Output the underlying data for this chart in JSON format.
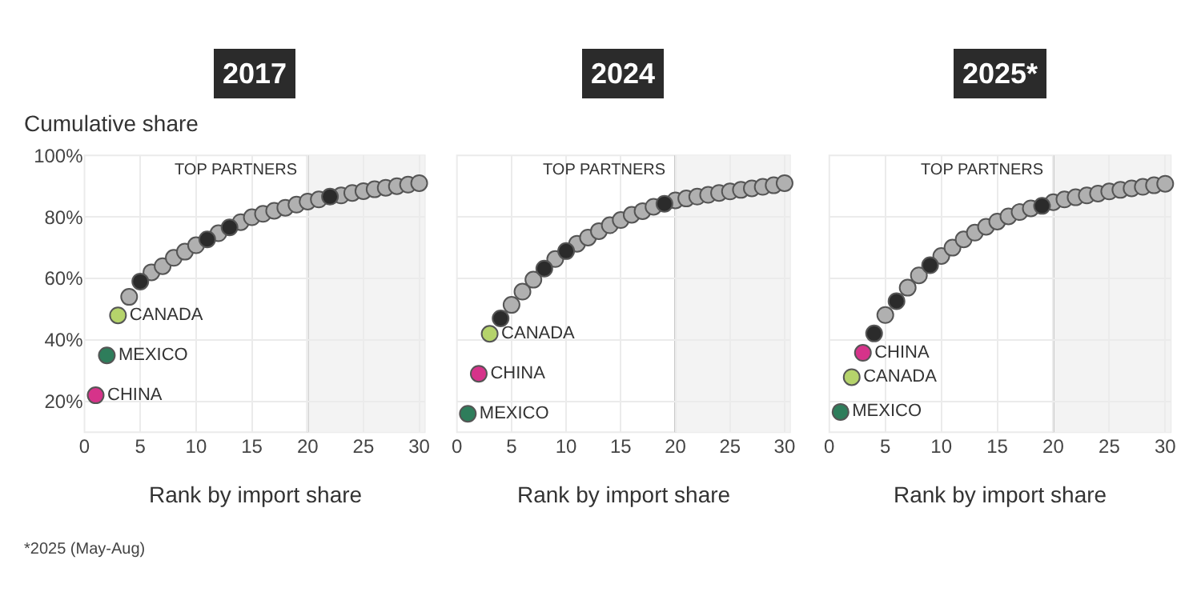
{
  "chart_data": [
    {
      "type": "scatter",
      "title": "2017",
      "xlabel": "Rank by import share",
      "ylabel": "Cumulative share",
      "xlim": [
        0,
        30.5
      ],
      "ylim": [
        10,
        100
      ],
      "xticks": [
        0,
        5,
        10,
        15,
        20,
        25,
        30
      ],
      "yticks": [
        {
          "value": 20,
          "label": "20%"
        },
        {
          "value": 40,
          "label": "40%"
        },
        {
          "value": 60,
          "label": "60%"
        },
        {
          "value": 80,
          "label": "80%"
        },
        {
          "value": 100,
          "label": "100%"
        }
      ],
      "grid": true,
      "marker": "circle",
      "annotations": [
        "*2025 (May-Aug)"
      ],
      "ref_lines": [
        {
          "axis": "x",
          "value": 20,
          "label": "TOP PARTNERS",
          "color": "#c8c8c8"
        }
      ],
      "bands": [
        {
          "axis": "x",
          "from": 20,
          "to": 30.5,
          "color": "#f3f3f3"
        }
      ],
      "series": [
        {
          "color": "#b0b0b0",
          "x": [
            4,
            6,
            7,
            8,
            9,
            10,
            12,
            14,
            15,
            16,
            17,
            18,
            19,
            20,
            21,
            23,
            24,
            25,
            26,
            27,
            28,
            29,
            30
          ],
          "values": [
            54,
            62,
            64,
            66.7,
            68.7,
            70.8,
            74.7,
            78.3,
            79.9,
            81,
            82,
            83,
            84,
            85,
            85.7,
            87,
            87.8,
            88.4,
            89,
            89.5,
            90,
            90.5,
            91
          ]
        },
        {
          "color": "#2b2b2b",
          "x": [
            5,
            11,
            13,
            22
          ],
          "values": [
            59,
            72.7,
            76.6,
            86.6
          ]
        },
        {
          "name": "CHINA",
          "color": "#d6338a",
          "x": [
            1
          ],
          "values": [
            22
          ]
        },
        {
          "name": "MEXICO",
          "color": "#2e7d5b",
          "x": [
            2
          ],
          "values": [
            35
          ]
        },
        {
          "name": "CANADA",
          "color": "#b5d36b",
          "x": [
            3
          ],
          "values": [
            48
          ]
        }
      ]
    },
    {
      "type": "scatter",
      "title": "2024",
      "xlabel": "Rank by import share",
      "xlim": [
        0,
        30.5
      ],
      "ylim": [
        10,
        100
      ],
      "xticks": [
        0,
        5,
        10,
        15,
        20,
        25,
        30
      ],
      "yticks": [
        20,
        40,
        60,
        80,
        100
      ],
      "tick_labels": "x",
      "grid": true,
      "marker": "circle",
      "ref_lines": [
        {
          "axis": "x",
          "value": 20,
          "label": "TOP PARTNERS",
          "color": "#c8c8c8"
        }
      ],
      "bands": [
        {
          "axis": "x",
          "from": 20,
          "to": 30.5,
          "color": "#f3f3f3"
        }
      ],
      "series": [
        {
          "color": "#b0b0b0",
          "x": [
            5,
            6,
            7,
            9,
            11,
            12,
            13,
            14,
            15,
            16,
            17,
            18,
            20,
            21,
            22,
            23,
            24,
            25,
            26,
            27,
            28,
            29,
            30
          ],
          "values": [
            51.4,
            55.7,
            59.6,
            66.3,
            71.3,
            73.3,
            75.4,
            77.3,
            79,
            80.7,
            81.9,
            83.3,
            85.4,
            86,
            86.6,
            87.2,
            87.8,
            88.3,
            88.8,
            89.3,
            89.8,
            90.3,
            91
          ]
        },
        {
          "color": "#2b2b2b",
          "x": [
            4,
            8,
            10,
            19
          ],
          "values": [
            47,
            63.2,
            68.9,
            84.3
          ]
        },
        {
          "name": "MEXICO",
          "color": "#2e7d5b",
          "x": [
            1
          ],
          "values": [
            16
          ]
        },
        {
          "name": "CHINA",
          "color": "#d6338a",
          "x": [
            2
          ],
          "values": [
            29
          ]
        },
        {
          "name": "CANADA",
          "color": "#b5d36b",
          "x": [
            3
          ],
          "values": [
            42
          ]
        }
      ]
    },
    {
      "type": "scatter",
      "title": "2025*",
      "xlabel": "Rank by import share",
      "xlim": [
        0,
        30.5
      ],
      "ylim": [
        10,
        100
      ],
      "xticks": [
        0,
        5,
        10,
        15,
        20,
        25,
        30
      ],
      "yticks": [
        20,
        40,
        60,
        80,
        100
      ],
      "tick_labels": "x",
      "grid": true,
      "marker": "circle",
      "ref_lines": [
        {
          "axis": "x",
          "value": 20,
          "label": "TOP PARTNERS",
          "color": "#c8c8c8"
        }
      ],
      "bands": [
        {
          "axis": "x",
          "from": 20,
          "to": 30.5,
          "color": "#f3f3f3"
        }
      ],
      "series": [
        {
          "color": "#b0b0b0",
          "x": [
            5,
            7,
            8,
            10,
            11,
            12,
            13,
            14,
            15,
            16,
            17,
            18,
            20,
            21,
            22,
            23,
            24,
            25,
            26,
            27,
            28,
            29,
            30
          ],
          "values": [
            48.1,
            57,
            61,
            67.3,
            70,
            72.7,
            74.9,
            76.8,
            78.5,
            80.2,
            81.6,
            82.8,
            84.8,
            85.7,
            86.4,
            87,
            87.6,
            88.3,
            88.8,
            89.3,
            89.8,
            90.3,
            90.8
          ]
        },
        {
          "color": "#2b2b2b",
          "x": [
            4,
            6,
            9,
            19
          ],
          "values": [
            42.1,
            52.6,
            64.3,
            83.6
          ]
        },
        {
          "name": "MEXICO",
          "color": "#2e7d5b",
          "x": [
            1
          ],
          "values": [
            16.6
          ]
        },
        {
          "name": "CANADA",
          "color": "#b5d36b",
          "x": [
            2
          ],
          "values": [
            27.9
          ]
        },
        {
          "name": "CHINA",
          "color": "#d6338a",
          "x": [
            3
          ],
          "values": [
            35.8
          ]
        }
      ]
    }
  ]
}
